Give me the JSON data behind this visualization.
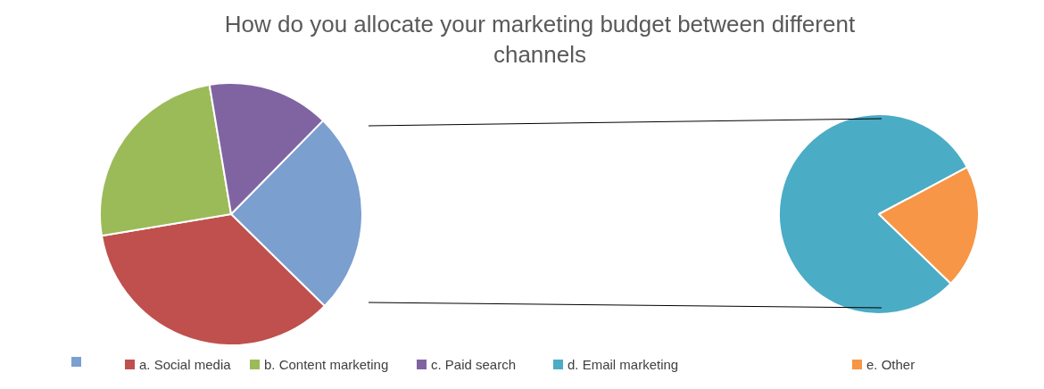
{
  "chart_data": [
    {
      "type": "pie",
      "title": "How do you allocate your marketing budget between different channels",
      "categories": [
        null,
        "a. Social media",
        "b. Content marketing",
        "c. Paid search"
      ],
      "values": [
        25,
        35,
        25,
        15
      ],
      "colors": [
        "#7b9fcf",
        "#c0504d",
        "#9bbb59",
        "#8064a2"
      ],
      "legend": "bottom"
    },
    {
      "type": "pie",
      "categories": [
        "d. Email marketing",
        "e. Other"
      ],
      "values": [
        80,
        20
      ],
      "colors": [
        "#4bacc6",
        "#f79646"
      ],
      "legend": "bottom"
    }
  ]
}
